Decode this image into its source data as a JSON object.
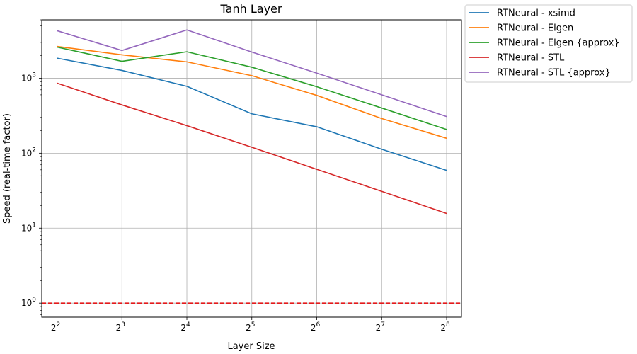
{
  "chart_data": {
    "type": "line",
    "title": "Tanh Layer",
    "xlabel": "Layer Size",
    "ylabel": "Speed (real-time factor)",
    "x_scale": "log2",
    "y_scale": "log10",
    "x": [
      4,
      8,
      16,
      32,
      64,
      128,
      256
    ],
    "x_tick_labels": [
      {
        "base": "2",
        "exp": "2"
      },
      {
        "base": "2",
        "exp": "3"
      },
      {
        "base": "2",
        "exp": "4"
      },
      {
        "base": "2",
        "exp": "5"
      },
      {
        "base": "2",
        "exp": "6"
      },
      {
        "base": "2",
        "exp": "7"
      },
      {
        "base": "2",
        "exp": "8"
      }
    ],
    "y_tick_labels": [
      {
        "value": 1,
        "base": "10",
        "exp": "0"
      },
      {
        "value": 10,
        "base": "10",
        "exp": "1"
      },
      {
        "value": 100,
        "base": "10",
        "exp": "2"
      },
      {
        "value": 1000,
        "base": "10",
        "exp": "3"
      }
    ],
    "xlim": [
      3.4,
      300
    ],
    "ylim": [
      0.65,
      6000
    ],
    "grid": true,
    "legend_position": "outside-top-right",
    "series": [
      {
        "name": "RTNeural - xsimd",
        "color": "#1f77b4",
        "values": [
          1850,
          1270,
          780,
          335,
          225,
          113,
          59
        ]
      },
      {
        "name": "RTNeural - Eigen",
        "color": "#ff7f0e",
        "values": [
          2650,
          2050,
          1650,
          1080,
          590,
          290,
          158
        ]
      },
      {
        "name": "RTNeural - Eigen {approx}",
        "color": "#2ca02c",
        "values": [
          2600,
          1680,
          2250,
          1400,
          770,
          400,
          207
        ]
      },
      {
        "name": "RTNeural - STL",
        "color": "#d62728",
        "values": [
          860,
          440,
          233,
          120,
          61,
          31,
          15.7
        ]
      },
      {
        "name": "RTNeural - STL {approx}",
        "color": "#9467bd",
        "values": [
          4300,
          2340,
          4400,
          2230,
          1170,
          600,
          308
        ]
      }
    ],
    "reference_line": {
      "y": 1,
      "color": "#e41a1c",
      "style": "dashed"
    }
  }
}
